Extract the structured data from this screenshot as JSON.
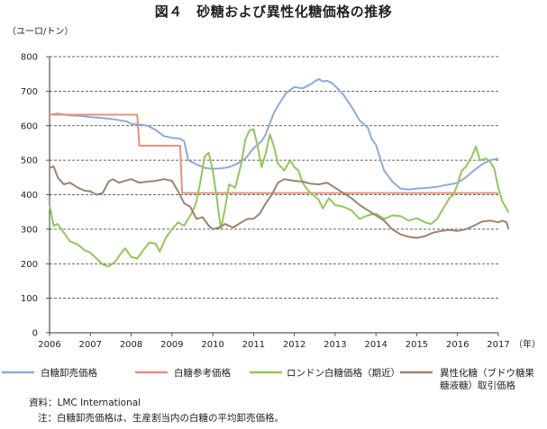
{
  "chart_data": {
    "type": "line",
    "title": "図４　砂糖および異性化糖価格の推移",
    "ylabel": "（ユーロ/トン）",
    "xlabel": "（年）",
    "ylim": [
      0,
      800
    ],
    "xlim": [
      2006,
      2017
    ],
    "yticks": [
      "0",
      "100",
      "200",
      "300",
      "400",
      "500",
      "600",
      "700",
      "800"
    ],
    "xticks": [
      "2006",
      "2007",
      "2008",
      "2009",
      "2010",
      "2011",
      "2012",
      "2013",
      "2014",
      "2015",
      "2016",
      "2017"
    ],
    "grid": "horizontal-dashed",
    "legend_position": "bottom",
    "series": [
      {
        "name": "白糖卸売価格",
        "color": "#8eaadb",
        "points": [
          [
            2006.0,
            632
          ],
          [
            2006.2,
            635
          ],
          [
            2006.5,
            630
          ],
          [
            2006.8,
            628
          ],
          [
            2007.0,
            625
          ],
          [
            2007.3,
            622
          ],
          [
            2007.6,
            618
          ],
          [
            2007.9,
            612
          ],
          [
            2008.0,
            605
          ],
          [
            2008.2,
            603
          ],
          [
            2008.4,
            600
          ],
          [
            2008.6,
            588
          ],
          [
            2008.8,
            570
          ],
          [
            2009.0,
            565
          ],
          [
            2009.2,
            562
          ],
          [
            2009.3,
            555
          ],
          [
            2009.4,
            500
          ],
          [
            2009.6,
            488
          ],
          [
            2009.8,
            478
          ],
          [
            2010.0,
            475
          ],
          [
            2010.2,
            476
          ],
          [
            2010.4,
            480
          ],
          [
            2010.6,
            490
          ],
          [
            2010.8,
            505
          ],
          [
            2011.0,
            535
          ],
          [
            2011.1,
            545
          ],
          [
            2011.2,
            555
          ],
          [
            2011.3,
            575
          ],
          [
            2011.5,
            638
          ],
          [
            2011.65,
            668
          ],
          [
            2011.8,
            695
          ],
          [
            2012.0,
            712
          ],
          [
            2012.2,
            708
          ],
          [
            2012.4,
            720
          ],
          [
            2012.5,
            728
          ],
          [
            2012.6,
            735
          ],
          [
            2012.7,
            728
          ],
          [
            2012.8,
            730
          ],
          [
            2012.9,
            725
          ],
          [
            2013.0,
            715
          ],
          [
            2013.2,
            690
          ],
          [
            2013.4,
            655
          ],
          [
            2013.6,
            615
          ],
          [
            2013.8,
            595
          ],
          [
            2013.9,
            560
          ],
          [
            2014.0,
            545
          ],
          [
            2014.2,
            470
          ],
          [
            2014.4,
            438
          ],
          [
            2014.6,
            418
          ],
          [
            2014.8,
            415
          ],
          [
            2015.0,
            418
          ],
          [
            2015.3,
            420
          ],
          [
            2015.5,
            423
          ],
          [
            2015.7,
            428
          ],
          [
            2015.9,
            432
          ],
          [
            2016.0,
            435
          ],
          [
            2016.2,
            450
          ],
          [
            2016.4,
            470
          ],
          [
            2016.6,
            488
          ],
          [
            2016.8,
            500
          ],
          [
            2017.0,
            505
          ]
        ]
      },
      {
        "name": "白糖参考価格",
        "color": "#e8917a",
        "points": [
          [
            2006.0,
            632
          ],
          [
            2008.15,
            632
          ],
          [
            2008.2,
            542
          ],
          [
            2009.2,
            542
          ],
          [
            2009.25,
            405
          ],
          [
            2017.0,
            405
          ]
        ]
      },
      {
        "name": "ロンドン白糖価格（期近）",
        "color": "#92c85a",
        "points": [
          [
            2006.0,
            370
          ],
          [
            2006.1,
            310
          ],
          [
            2006.2,
            315
          ],
          [
            2006.35,
            290
          ],
          [
            2006.5,
            265
          ],
          [
            2006.7,
            255
          ],
          [
            2006.85,
            240
          ],
          [
            2007.0,
            232
          ],
          [
            2007.15,
            215
          ],
          [
            2007.3,
            198
          ],
          [
            2007.45,
            192
          ],
          [
            2007.6,
            205
          ],
          [
            2007.75,
            230
          ],
          [
            2007.85,
            245
          ],
          [
            2008.0,
            220
          ],
          [
            2008.15,
            215
          ],
          [
            2008.3,
            240
          ],
          [
            2008.45,
            262
          ],
          [
            2008.6,
            258
          ],
          [
            2008.7,
            235
          ],
          [
            2008.85,
            275
          ],
          [
            2009.0,
            300
          ],
          [
            2009.15,
            320
          ],
          [
            2009.3,
            310
          ],
          [
            2009.4,
            330
          ],
          [
            2009.5,
            350
          ],
          [
            2009.6,
            380
          ],
          [
            2009.7,
            440
          ],
          [
            2009.8,
            510
          ],
          [
            2009.9,
            522
          ],
          [
            2010.0,
            470
          ],
          [
            2010.1,
            390
          ],
          [
            2010.2,
            300
          ],
          [
            2010.3,
            360
          ],
          [
            2010.4,
            430
          ],
          [
            2010.55,
            420
          ],
          [
            2010.7,
            490
          ],
          [
            2010.8,
            560
          ],
          [
            2010.9,
            586
          ],
          [
            2011.0,
            590
          ],
          [
            2011.1,
            540
          ],
          [
            2011.2,
            480
          ],
          [
            2011.3,
            520
          ],
          [
            2011.4,
            575
          ],
          [
            2011.5,
            540
          ],
          [
            2011.6,
            490
          ],
          [
            2011.75,
            470
          ],
          [
            2011.9,
            500
          ],
          [
            2012.0,
            480
          ],
          [
            2012.1,
            470
          ],
          [
            2012.2,
            435
          ],
          [
            2012.35,
            410
          ],
          [
            2012.5,
            395
          ],
          [
            2012.6,
            385
          ],
          [
            2012.7,
            360
          ],
          [
            2012.85,
            390
          ],
          [
            2013.0,
            370
          ],
          [
            2013.2,
            365
          ],
          [
            2013.4,
            355
          ],
          [
            2013.6,
            330
          ],
          [
            2013.8,
            340
          ],
          [
            2014.0,
            345
          ],
          [
            2014.2,
            330
          ],
          [
            2014.4,
            340
          ],
          [
            2014.6,
            338
          ],
          [
            2014.8,
            325
          ],
          [
            2015.0,
            332
          ],
          [
            2015.2,
            320
          ],
          [
            2015.35,
            315
          ],
          [
            2015.5,
            330
          ],
          [
            2015.65,
            360
          ],
          [
            2015.8,
            390
          ],
          [
            2015.9,
            400
          ],
          [
            2016.0,
            430
          ],
          [
            2016.1,
            470
          ],
          [
            2016.2,
            480
          ],
          [
            2016.35,
            510
          ],
          [
            2016.45,
            540
          ],
          [
            2016.55,
            500
          ],
          [
            2016.7,
            505
          ],
          [
            2016.8,
            495
          ],
          [
            2016.9,
            475
          ],
          [
            2017.0,
            420
          ],
          [
            2017.1,
            380
          ],
          [
            2017.2,
            360
          ],
          [
            2017.25,
            348
          ]
        ]
      },
      {
        "name": "異性化糖（ブドウ糖果糖液糖）取引価格",
        "color": "#9c8472",
        "points": [
          [
            2006.0,
            478
          ],
          [
            2006.1,
            482
          ],
          [
            2006.2,
            450
          ],
          [
            2006.35,
            430
          ],
          [
            2006.5,
            435
          ],
          [
            2006.7,
            420
          ],
          [
            2006.85,
            412
          ],
          [
            2007.0,
            410
          ],
          [
            2007.15,
            400
          ],
          [
            2007.3,
            405
          ],
          [
            2007.45,
            438
          ],
          [
            2007.55,
            445
          ],
          [
            2007.7,
            435
          ],
          [
            2007.85,
            440
          ],
          [
            2008.0,
            445
          ],
          [
            2008.2,
            435
          ],
          [
            2008.4,
            438
          ],
          [
            2008.6,
            440
          ],
          [
            2008.8,
            445
          ],
          [
            2009.0,
            440
          ],
          [
            2009.15,
            410
          ],
          [
            2009.3,
            375
          ],
          [
            2009.45,
            365
          ],
          [
            2009.6,
            330
          ],
          [
            2009.75,
            335
          ],
          [
            2009.9,
            310
          ],
          [
            2010.0,
            300
          ],
          [
            2010.15,
            305
          ],
          [
            2010.3,
            315
          ],
          [
            2010.5,
            305
          ],
          [
            2010.7,
            320
          ],
          [
            2010.85,
            330
          ],
          [
            2011.0,
            330
          ],
          [
            2011.15,
            345
          ],
          [
            2011.3,
            375
          ],
          [
            2011.45,
            400
          ],
          [
            2011.6,
            435
          ],
          [
            2011.75,
            445
          ],
          [
            2011.9,
            442
          ],
          [
            2012.0,
            440
          ],
          [
            2012.2,
            438
          ],
          [
            2012.4,
            432
          ],
          [
            2012.6,
            430
          ],
          [
            2012.8,
            435
          ],
          [
            2013.0,
            420
          ],
          [
            2013.2,
            405
          ],
          [
            2013.4,
            390
          ],
          [
            2013.6,
            370
          ],
          [
            2013.8,
            355
          ],
          [
            2014.0,
            340
          ],
          [
            2014.2,
            325
          ],
          [
            2014.4,
            300
          ],
          [
            2014.6,
            285
          ],
          [
            2014.8,
            278
          ],
          [
            2015.0,
            275
          ],
          [
            2015.2,
            280
          ],
          [
            2015.4,
            290
          ],
          [
            2015.6,
            295
          ],
          [
            2015.8,
            298
          ],
          [
            2016.0,
            295
          ],
          [
            2016.2,
            300
          ],
          [
            2016.4,
            310
          ],
          [
            2016.6,
            322
          ],
          [
            2016.8,
            325
          ],
          [
            2017.0,
            320
          ],
          [
            2017.1,
            325
          ],
          [
            2017.2,
            320
          ],
          [
            2017.25,
            300
          ]
        ]
      }
    ]
  },
  "notes": {
    "source": "資料：LMC International",
    "note": "注：白糖卸売価格は、生産割当内の白糖の平均卸売価格。"
  }
}
